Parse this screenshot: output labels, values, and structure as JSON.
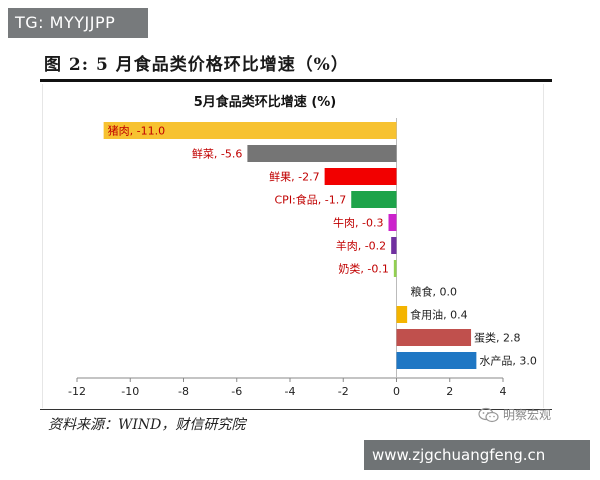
{
  "watermark_top": "TG: MYYJJPP",
  "figure_title": "图 2:  5 月食品类价格环比增速（%）",
  "source": "资料来源：WIND，财信研究院",
  "wechat_label": "明察宏观",
  "watermark_bottom": "www.zjgchuangfeng.cn",
  "chart_data": {
    "type": "bar",
    "orientation": "horizontal",
    "title": "5月食品类环比增速 (%)",
    "xlabel": "",
    "ylabel": "",
    "xlim": [
      -12,
      4
    ],
    "xticks": [
      -12,
      -10,
      -8,
      -6,
      -4,
      -2,
      0,
      2,
      4
    ],
    "grid": false,
    "categories": [
      "猪肉",
      "鲜菜",
      "鲜果",
      "CPI:食品",
      "牛肉",
      "羊肉",
      "奶类",
      "粮食",
      "食用油",
      "蛋类",
      "水产品"
    ],
    "values": [
      -11.0,
      -5.6,
      -2.7,
      -1.7,
      -0.3,
      -0.2,
      -0.1,
      0.0,
      0.4,
      2.8,
      3.0
    ],
    "data_labels": [
      "猪肉, -11.0",
      "鲜菜, -5.6",
      "鲜果, -2.7",
      "CPI:食品, -1.7",
      "牛肉, -0.3",
      "羊肉, -0.2",
      "奶类, -0.1",
      "粮食, 0.0",
      "食用油, 0.4",
      "蛋类, 2.8",
      "水产品, 3.0"
    ],
    "colors": [
      "#f7c231",
      "#757575",
      "#f20000",
      "#1ea34a",
      "#cc22cc",
      "#7030a0",
      "#92d050",
      "#2e5597",
      "#f4b400",
      "#c0504d",
      "#1f77c4"
    ],
    "negative_label_color": "#c00000",
    "positive_label_color": "#222222"
  }
}
